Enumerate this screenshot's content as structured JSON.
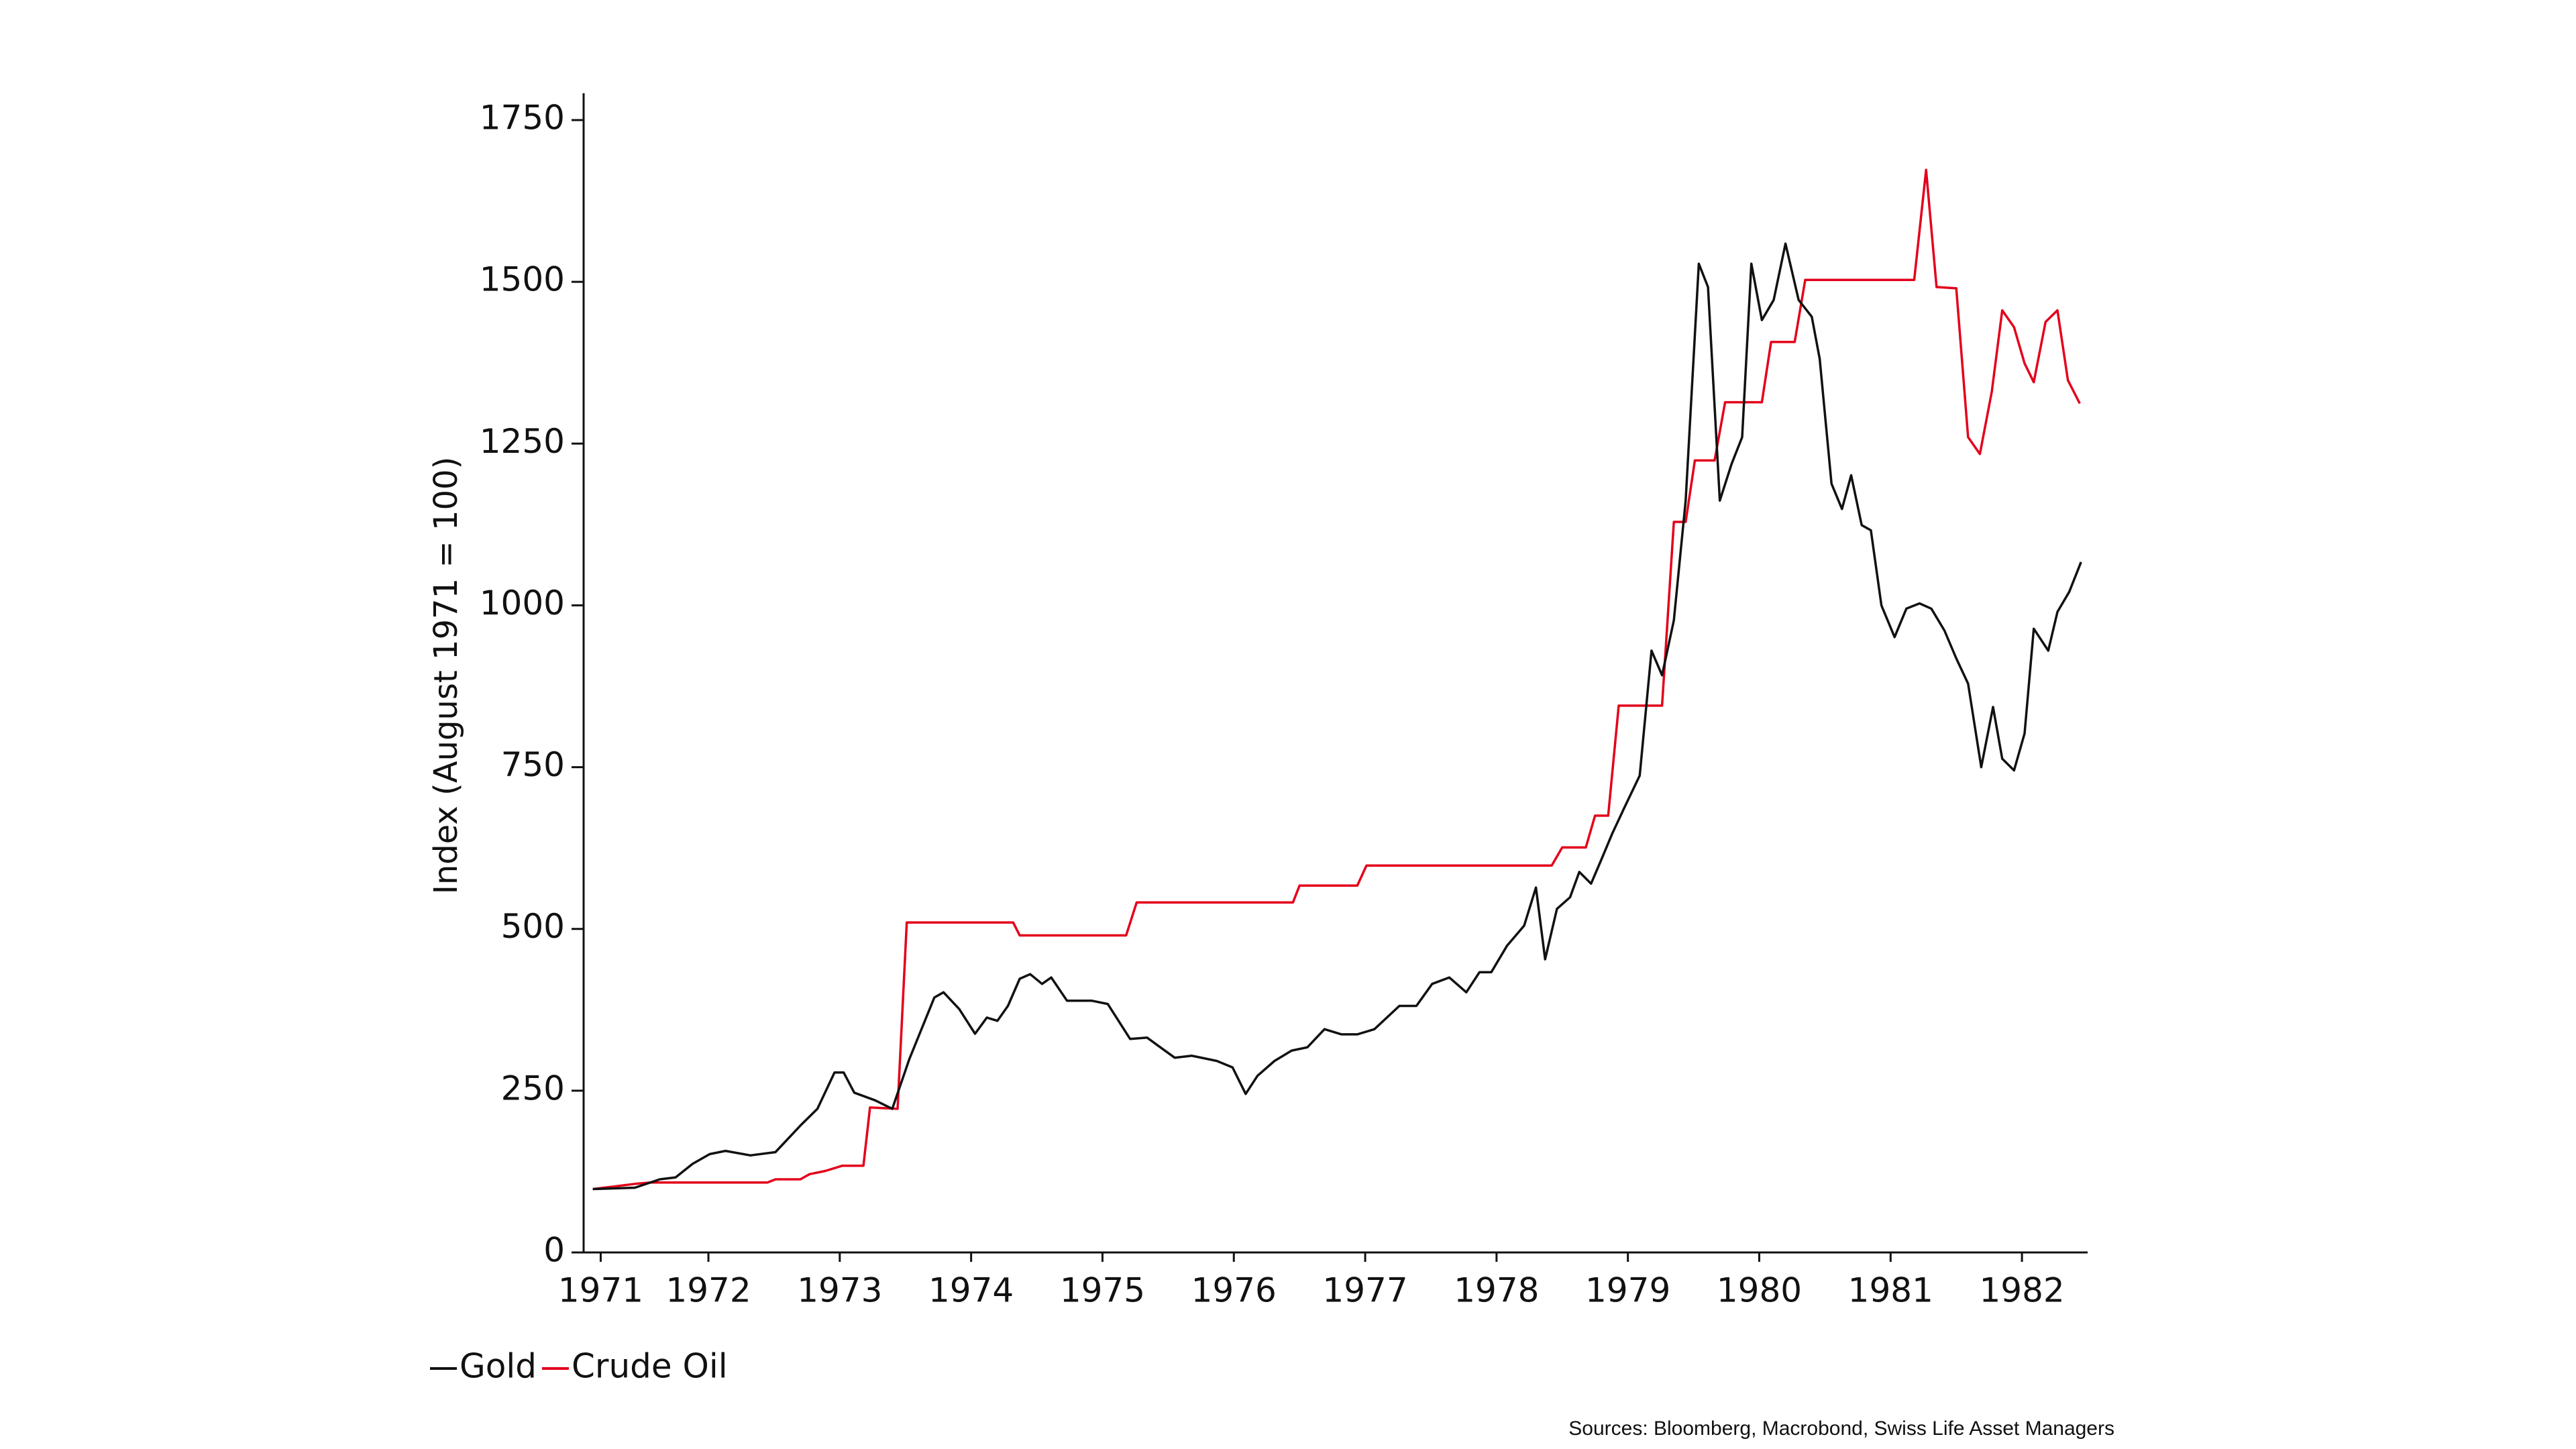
{
  "chart_data": {
    "type": "line",
    "y_label": "Index (August 1971 = 100)",
    "source": "Sources: Bloomberg, Macrobond, Swiss Life Asset Managers",
    "xlim": [
      1971.55,
      1983
    ],
    "xticks": [
      {
        "value": 1971.68,
        "label": "1971"
      },
      {
        "value": 1972.5,
        "label": "1972"
      },
      {
        "value": 1973.5,
        "label": "1973"
      },
      {
        "value": 1974.5,
        "label": "1974"
      },
      {
        "value": 1975.5,
        "label": "1975"
      },
      {
        "value": 1976.5,
        "label": "1976"
      },
      {
        "value": 1977.5,
        "label": "1977"
      },
      {
        "value": 1978.5,
        "label": "1978"
      },
      {
        "value": 1979.5,
        "label": "1979"
      },
      {
        "value": 1980.5,
        "label": "1980"
      },
      {
        "value": 1981.5,
        "label": "1981"
      },
      {
        "value": 1982.5,
        "label": "1982"
      }
    ],
    "ylim": [
      0,
      1750
    ],
    "yticks": [
      0,
      250,
      500,
      750,
      1000,
      1250,
      1500,
      1750
    ],
    "legend": "bottom-left",
    "series": [
      {
        "name": "Gold",
        "color": "#111111",
        "x": [
          1971.62,
          1971.94,
          1972.13,
          1972.25,
          1972.38,
          1972.51,
          1972.63,
          1972.82,
          1973.01,
          1973.2,
          1973.33,
          1973.46,
          1973.53,
          1973.61,
          1973.77,
          1973.9,
          1974.03,
          1974.22,
          1974.29,
          1974.41,
          1974.53,
          1974.62,
          1974.7,
          1974.78,
          1974.87,
          1974.95,
          1975.04,
          1975.11,
          1975.23,
          1975.42,
          1975.54,
          1975.71,
          1975.84,
          1975.92,
          1976.05,
          1976.18,
          1976.37,
          1976.49,
          1976.59,
          1976.68,
          1976.81,
          1976.94,
          1977.06,
          1977.19,
          1977.32,
          1977.44,
          1977.57,
          1977.76,
          1977.89,
          1978.01,
          1978.14,
          1978.27,
          1978.37,
          1978.46,
          1978.58,
          1978.71,
          1978.8,
          1978.87,
          1978.96,
          1979.06,
          1979.13,
          1979.22,
          1979.3,
          1979.38,
          1979.47,
          1979.59,
          1979.68,
          1979.76,
          1979.85,
          1979.94,
          1980.04,
          1980.11,
          1980.2,
          1980.29,
          1980.37,
          1980.44,
          1980.52,
          1980.61,
          1980.7,
          1980.8,
          1980.9,
          1980.96,
          1981.05,
          1981.13,
          1981.2,
          1981.28,
          1981.35,
          1981.43,
          1981.53,
          1981.62,
          1981.72,
          1981.81,
          1981.91,
          1982.0,
          1982.09,
          1982.19,
          1982.28,
          1982.35,
          1982.44,
          1982.52,
          1982.59,
          1982.7,
          1982.77,
          1982.86,
          1982.95
        ],
        "values": [
          98,
          100,
          113,
          116,
          137,
          152,
          157,
          150,
          155,
          196,
          222,
          278,
          278,
          247,
          235,
          222,
          299,
          394,
          402,
          376,
          338,
          363,
          358,
          381,
          423,
          430,
          415,
          425,
          389,
          389,
          384,
          330,
          332,
          320,
          301,
          304,
          296,
          286,
          245,
          273,
          296,
          312,
          317,
          345,
          337,
          337,
          345,
          381,
          381,
          415,
          425,
          402,
          433,
          433,
          474,
          505,
          564,
          453,
          531,
          549,
          588,
          570,
          608,
          647,
          686,
          737,
          930,
          892,
          977,
          1162,
          1528,
          1492,
          1162,
          1219,
          1260,
          1528,
          1441,
          1472,
          1559,
          1472,
          1446,
          1381,
          1188,
          1149,
          1201,
          1124,
          1116,
          1000,
          951,
          995,
          1003,
          995,
          961,
          918,
          879,
          750,
          843,
          763,
          745,
          802,
          964,
          930,
          990,
          1021,
          1067
        ]
      },
      {
        "name": "Crude Oil",
        "color": "#e3001b",
        "x": [
          1971.62,
          1971.94,
          1972.06,
          1972.95,
          1973.01,
          1973.2,
          1973.27,
          1973.39,
          1973.52,
          1973.68,
          1973.73,
          1973.94,
          1974.01,
          1974.82,
          1974.87,
          1975.68,
          1975.76,
          1976.95,
          1977.0,
          1977.44,
          1977.51,
          1978.92,
          1979.0,
          1979.18,
          1979.25,
          1979.35,
          1979.43,
          1979.76,
          1979.85,
          1979.94,
          1980.01,
          1980.16,
          1980.24,
          1980.52,
          1980.59,
          1980.77,
          1980.85,
          1981.68,
          1981.77,
          1981.85,
          1982.0,
          1982.09,
          1982.18,
          1982.27,
          1982.35,
          1982.44,
          1982.52,
          1982.59,
          1982.68,
          1982.77,
          1982.85,
          1982.94
        ],
        "values": [
          98,
          106,
          108,
          108,
          113,
          113,
          121,
          126,
          134,
          134,
          224,
          222,
          510,
          510,
          490,
          490,
          541,
          541,
          567,
          567,
          598,
          598,
          626,
          626,
          675,
          675,
          845,
          845,
          1129,
          1129,
          1224,
          1224,
          1314,
          1314,
          1407,
          1407,
          1503,
          1503,
          1673,
          1492,
          1490,
          1260,
          1234,
          1330,
          1456,
          1430,
          1374,
          1345,
          1438,
          1456,
          1348,
          1312
        ]
      }
    ]
  }
}
